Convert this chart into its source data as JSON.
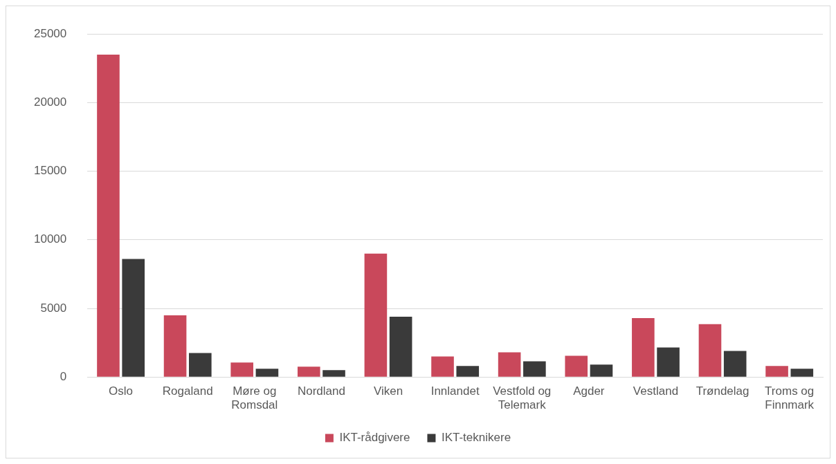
{
  "chart_data": {
    "type": "bar",
    "categories": [
      "Oslo",
      "Rogaland",
      "Møre og Romsdal",
      "Nordland",
      "Viken",
      "Innlandet",
      "Vestfold og Telemark",
      "Agder",
      "Vestland",
      "Trøndelag",
      "Troms og Finnmark"
    ],
    "series": [
      {
        "name": "IKT-rådgivere",
        "color": "#c9485b",
        "values": [
          23500,
          4500,
          1050,
          750,
          9000,
          1500,
          1800,
          1550,
          4300,
          3850,
          800
        ]
      },
      {
        "name": "IKT-teknikere",
        "color": "#3a3a3a",
        "values": [
          8600,
          1750,
          600,
          500,
          4400,
          800,
          1150,
          900,
          2150,
          1900,
          600
        ]
      }
    ],
    "ylim": [
      0,
      25000
    ],
    "yticks": [
      0,
      5000,
      10000,
      15000,
      20000,
      25000
    ],
    "grid": "y",
    "legend": "bottom"
  }
}
